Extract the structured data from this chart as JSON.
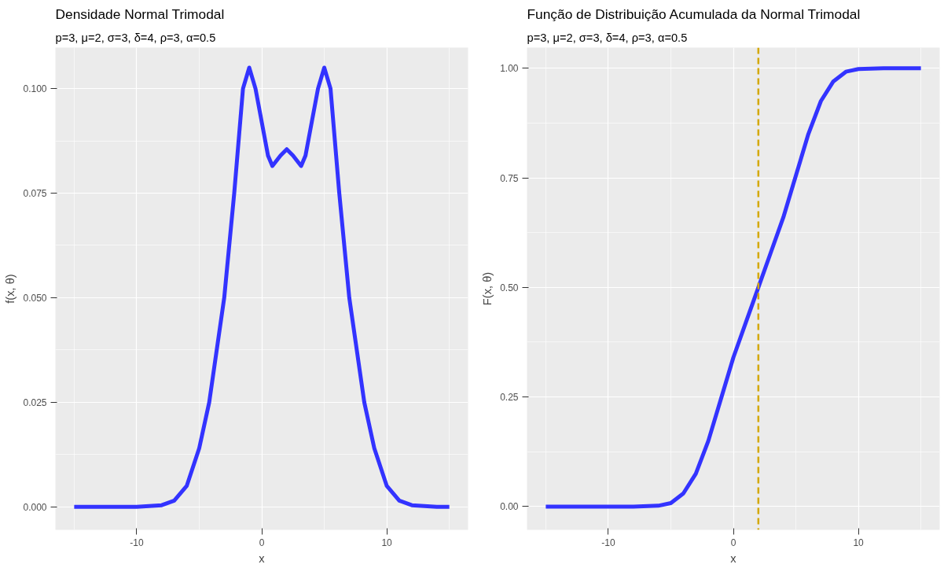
{
  "chart_data": [
    {
      "type": "line",
      "title": "Densidade Normal Trimodal",
      "subtitle": "p=3,  μ=2,  σ=3,  δ=4,  ρ=3,  α=0.5",
      "xlabel": "x",
      "ylabel": "f(x, θ)",
      "x": [
        -15,
        -10,
        -8,
        -7,
        -6,
        -5,
        -4.2,
        -3,
        -2.2,
        -1.5,
        -1,
        -0.5,
        0,
        0.5,
        0.85,
        1.5,
        2,
        2.5,
        3.15,
        3.5,
        4,
        4.5,
        5,
        5.5,
        6.2,
        7,
        8.2,
        9,
        10,
        11,
        12,
        14,
        15
      ],
      "series": [
        {
          "color": "#3333ff",
          "values": [
            0,
            0,
            0.0004,
            0.0015,
            0.005,
            0.014,
            0.025,
            0.05,
            0.075,
            0.1,
            0.105,
            0.1,
            0.092,
            0.084,
            0.0815,
            0.084,
            0.0855,
            0.084,
            0.0815,
            0.084,
            0.092,
            0.1,
            0.105,
            0.1,
            0.075,
            0.05,
            0.025,
            0.014,
            0.005,
            0.0015,
            0.0004,
            0,
            0
          ]
        }
      ],
      "xlim": [
        -16.5,
        16.5
      ],
      "xticks": [
        -10,
        0,
        10
      ],
      "ylim": [
        -0.0055,
        0.1098
      ],
      "yticks": [
        {
          "value": 0,
          "label": "0.000"
        },
        {
          "value": 0.025,
          "label": "0.025"
        },
        {
          "value": 0.05,
          "label": "0.050"
        },
        {
          "value": 0.075,
          "label": "0.075"
        },
        {
          "value": 0.1,
          "label": "0.100"
        }
      ],
      "grid": true,
      "line_style": "solid"
    },
    {
      "type": "line",
      "title": "Função de Distribuição Acumulada da Normal Trimodal",
      "subtitle": "p=3,  μ=2,  σ=3,  δ=4,  ρ=3,  α=0.5",
      "xlabel": "x",
      "ylabel": "F(x, θ)",
      "x": [
        -15,
        -8,
        -6,
        -5,
        -4,
        -3,
        -2,
        -1,
        0,
        1,
        2,
        3,
        4,
        5,
        6,
        7,
        8,
        9,
        10,
        12,
        15
      ],
      "series": [
        {
          "color": "#3333ff",
          "values": [
            0,
            0,
            0.002,
            0.008,
            0.03,
            0.075,
            0.15,
            0.245,
            0.34,
            0.42,
            0.5,
            0.58,
            0.66,
            0.755,
            0.85,
            0.925,
            0.97,
            0.992,
            0.998,
            1,
            1
          ]
        }
      ],
      "ref_lines": [
        {
          "axis": "x",
          "value": 2,
          "color": "#d4a800",
          "line_style": "dashed"
        }
      ],
      "xlim": [
        -16.5,
        16.5
      ],
      "xticks": [
        -10,
        0,
        10
      ],
      "ylim": [
        -0.053,
        1.047
      ],
      "yticks": [
        {
          "value": 0,
          "label": "0.00"
        },
        {
          "value": 0.25,
          "label": "0.25"
        },
        {
          "value": 0.5,
          "label": "0.50"
        },
        {
          "value": 0.75,
          "label": "0.75"
        },
        {
          "value": 1,
          "label": "1.00"
        }
      ],
      "grid": true,
      "line_style": "solid"
    }
  ]
}
